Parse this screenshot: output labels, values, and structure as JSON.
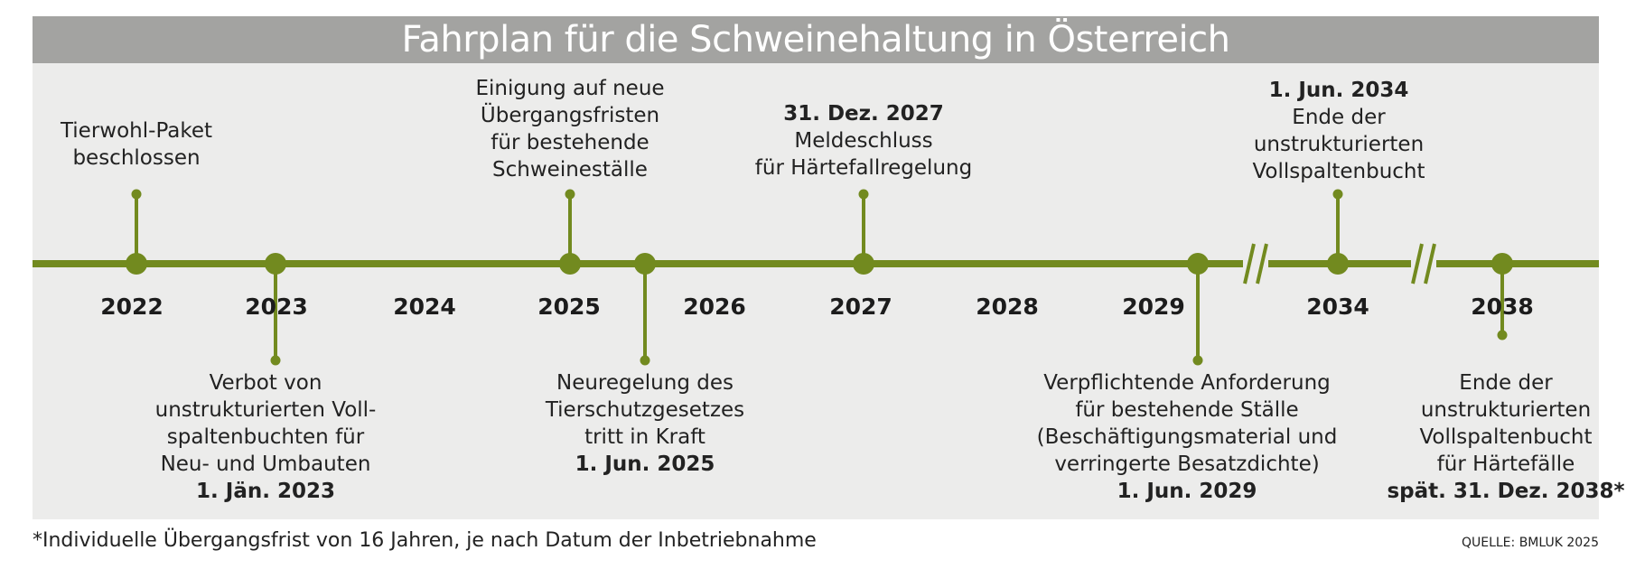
{
  "title": "Fahrplan für die Schweinehaltung in Österreich",
  "colors": {
    "header_bg": "#a3a3a1",
    "panel_bg": "#ececeb",
    "timeline_green": "#728a1f"
  },
  "years": [
    "2022",
    "2023",
    "2024",
    "2025",
    "2026",
    "2027",
    "2028",
    "2029",
    "2034",
    "2038"
  ],
  "events": [
    {
      "id": "tierwohl-paket",
      "position": "above",
      "year": "2022",
      "lines": [
        "Tierwohl-Paket",
        "beschlossen"
      ]
    },
    {
      "id": "vollspalten-verbot-neubau",
      "position": "below",
      "year": "2023",
      "lines": [
        "Verbot von",
        "unstrukturierten Voll-",
        "spaltenbuchten für",
        "Neu- und Umbauten"
      ],
      "date": "1. Jän. 2023"
    },
    {
      "id": "einigung-uebergangsfristen",
      "position": "above",
      "year": "2025",
      "lines": [
        "Einigung auf neue",
        "Übergangsfristen",
        "für bestehende",
        "Schweineställe"
      ]
    },
    {
      "id": "neuregelung-tierschutzgesetz",
      "position": "below",
      "year": "2025",
      "lines": [
        "Neuregelung des",
        "Tierschutzgesetzes",
        "tritt in Kraft"
      ],
      "date": "1. Jun. 2025"
    },
    {
      "id": "meldeschluss-haertefall",
      "position": "above",
      "year": "2027",
      "date": "31. Dez. 2027",
      "lines": [
        "Meldeschluss",
        "für Härtefallregelung"
      ]
    },
    {
      "id": "anforderung-bestehende-staelle",
      "position": "below",
      "year": "2029",
      "lines": [
        "Verpflichtende Anforderung",
        "für bestehende Ställe",
        "(Beschäftigungsmaterial und",
        "verringerte Besatzdichte)"
      ],
      "date": "1. Jun. 2029"
    },
    {
      "id": "ende-vollspaltenbucht",
      "position": "above",
      "year": "2034",
      "date": "1. Jun. 2034",
      "lines": [
        "Ende der",
        "unstrukturierten",
        "Vollspaltenbucht"
      ]
    },
    {
      "id": "ende-vollspaltenbucht-haertefaelle",
      "position": "below",
      "year": "2038",
      "lines": [
        "Ende der",
        "unstrukturierten",
        "Vollspaltenbucht",
        "für Härtefälle"
      ],
      "date": "spät. 31. Dez. 2038*"
    }
  ],
  "footnote": "*Individuelle Übergangsfrist von 16 Jahren, je nach Datum der Inbetriebnahme",
  "source": "QUELLE: BMLUK 2025"
}
